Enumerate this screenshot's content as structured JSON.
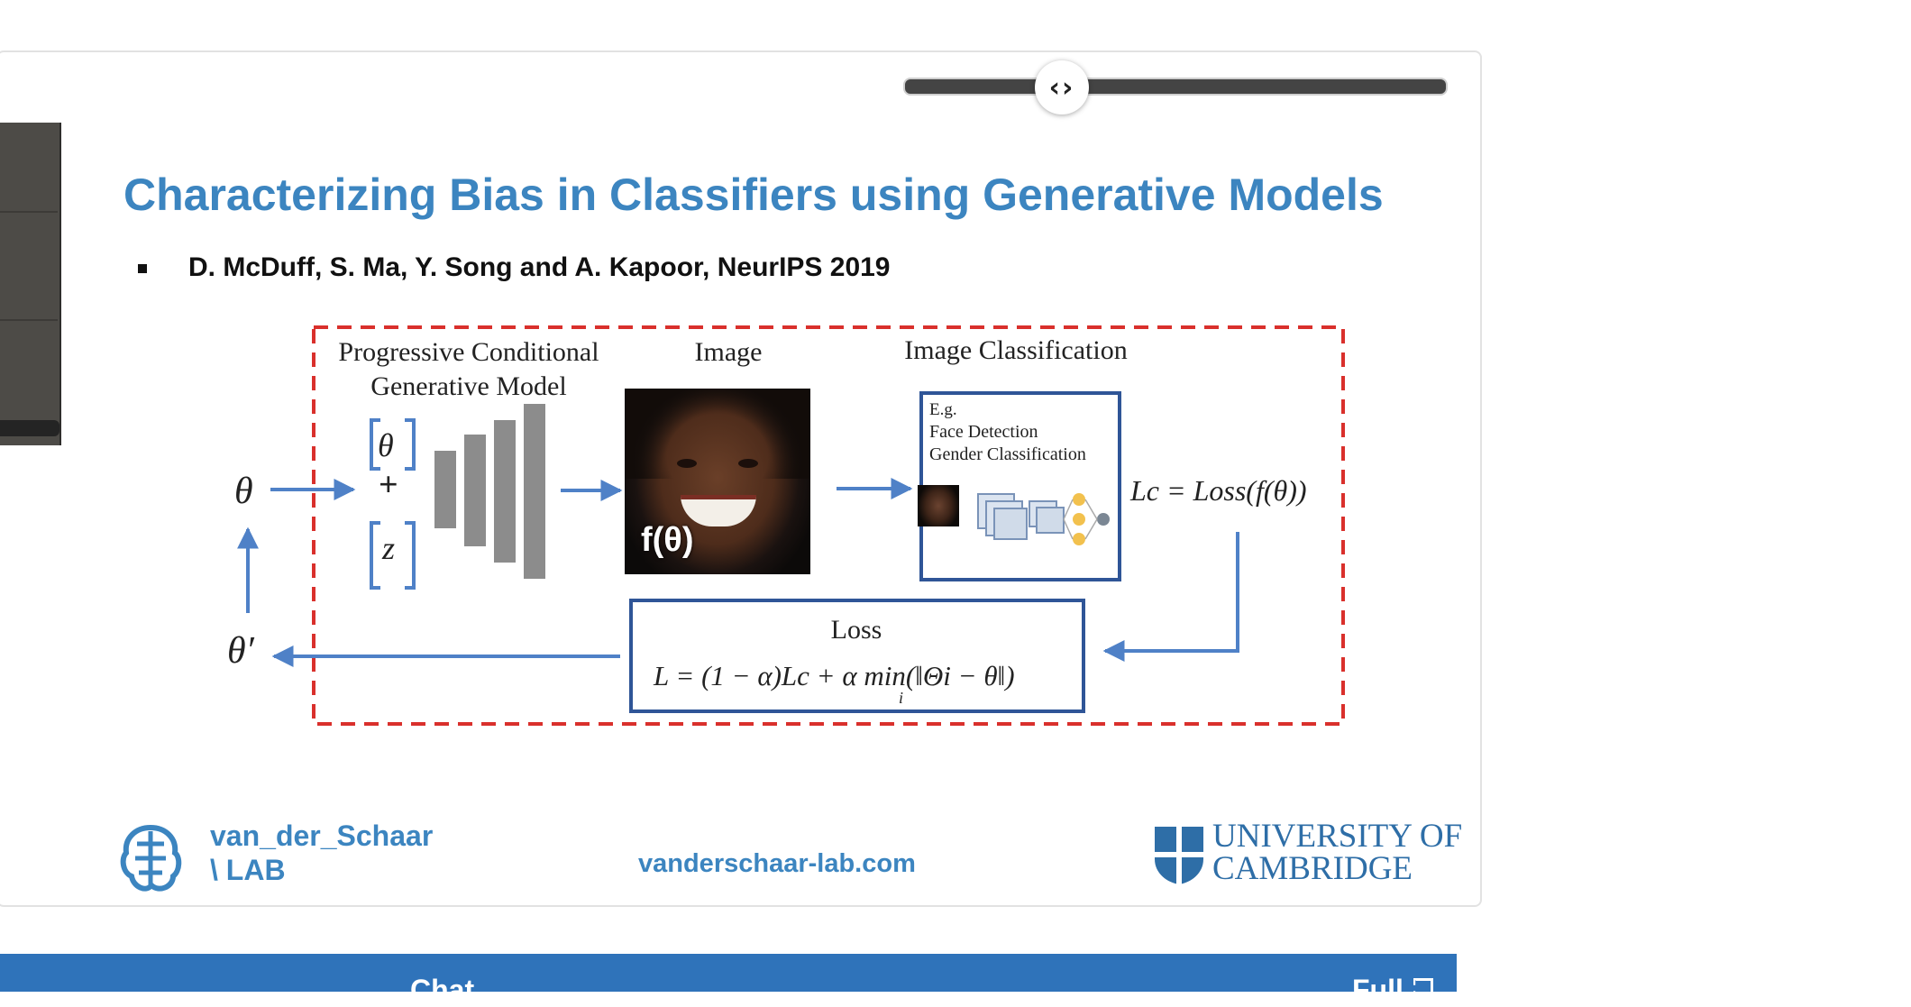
{
  "slider": {
    "handle_glyph": "‹›"
  },
  "slide": {
    "title": "Characterizing Bias in Classifiers using Generative Models",
    "citation": "D. McDuff, S. Ma, Y. Song and A. Kapoor, NeurIPS 2019"
  },
  "diagram": {
    "gen_title_line1": "Progressive Conditional",
    "gen_title_line2": "Generative Model",
    "image_title": "Image",
    "classification_title": "Image Classification",
    "theta": "θ",
    "theta_prime": "θ′",
    "vec_theta": "θ",
    "plus": "+",
    "vec_z": "z",
    "face_label": "f(θ)",
    "cls_eg": "E.g.",
    "cls_line1": "Face Detection",
    "cls_line2": "Gender Classification",
    "lc_formula": "Lc = Loss(f(θ))",
    "loss_title": "Loss",
    "loss_formula": "L = (1 − α)Lc +  α min(‖Θi − θ‖)",
    "loss_sub": "i"
  },
  "footer": {
    "lab_name": "van_der_Schaar\n\\ LAB",
    "lab_url": "vanderschaar-lab.com",
    "university": "UNIVERSITY OF\nCAMBRIDGE"
  },
  "bottom_bar": {
    "chat_label": "Chat",
    "full_label": "Full"
  },
  "colors": {
    "title_blue": "#3c85c0",
    "dashed_red": "#d9302c",
    "arrow_blue": "#4f81c7",
    "chat_bar": "#2f73ba"
  }
}
